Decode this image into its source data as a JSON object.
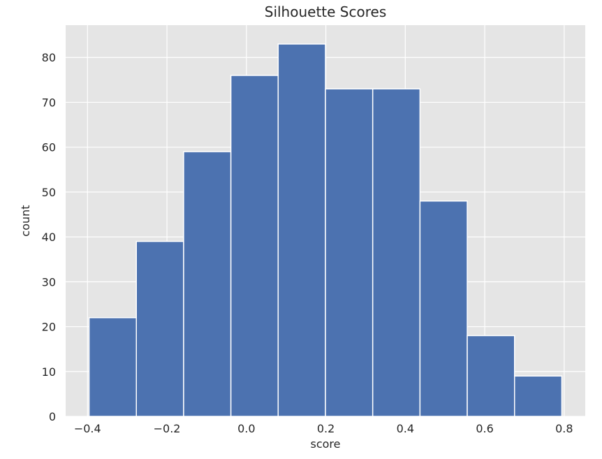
{
  "chart_data": {
    "type": "bar",
    "title": "Silhouette Scores",
    "xlabel": "score",
    "ylabel": "count",
    "bin_edges": [
      -0.396,
      -0.277,
      -0.158,
      -0.039,
      0.08,
      0.199,
      0.318,
      0.437,
      0.556,
      0.675,
      0.794
    ],
    "values": [
      22,
      39,
      59,
      76,
      83,
      73,
      73,
      48,
      18,
      9
    ],
    "xlim": [
      -0.455,
      0.853
    ],
    "ylim": [
      0,
      87.2
    ],
    "xticks": [
      -0.4,
      -0.2,
      0.0,
      0.2,
      0.4,
      0.6,
      0.8
    ],
    "xtick_labels": [
      "−0.4",
      "−0.2",
      "0.0",
      "0.2",
      "0.4",
      "0.6",
      "0.8"
    ],
    "yticks": [
      0,
      10,
      20,
      30,
      40,
      50,
      60,
      70,
      80
    ],
    "ytick_labels": [
      "0",
      "10",
      "20",
      "30",
      "40",
      "50",
      "60",
      "70",
      "80"
    ],
    "grid": true,
    "colors": {
      "bar": "#4c72b0",
      "plot_bg": "#e5e5e5",
      "grid": "#ffffff"
    }
  }
}
